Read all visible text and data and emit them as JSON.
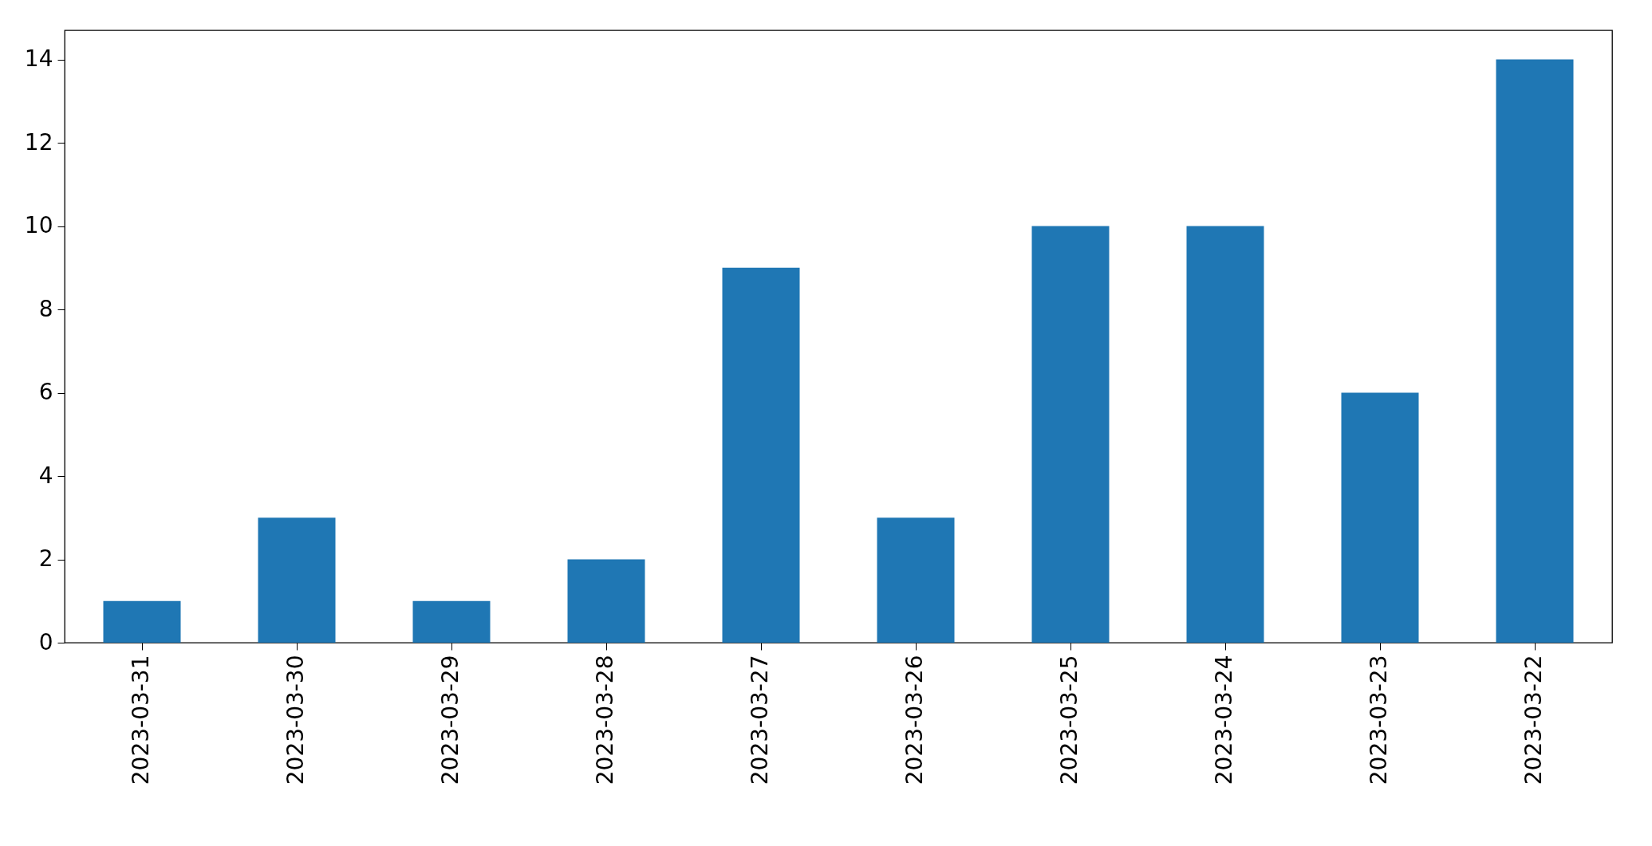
{
  "chart_data": {
    "type": "bar",
    "categories": [
      "2023-03-31",
      "2023-03-30",
      "2023-03-29",
      "2023-03-28",
      "2023-03-27",
      "2023-03-26",
      "2023-03-25",
      "2023-03-24",
      "2023-03-23",
      "2023-03-22"
    ],
    "values": [
      1,
      3,
      1,
      2,
      9,
      3,
      10,
      10,
      6,
      14
    ],
    "color": "#1f77b4",
    "ylim": [
      0,
      14.7
    ],
    "yticks": [
      0,
      2,
      4,
      6,
      8,
      10,
      12,
      14
    ],
    "grid": false
  }
}
